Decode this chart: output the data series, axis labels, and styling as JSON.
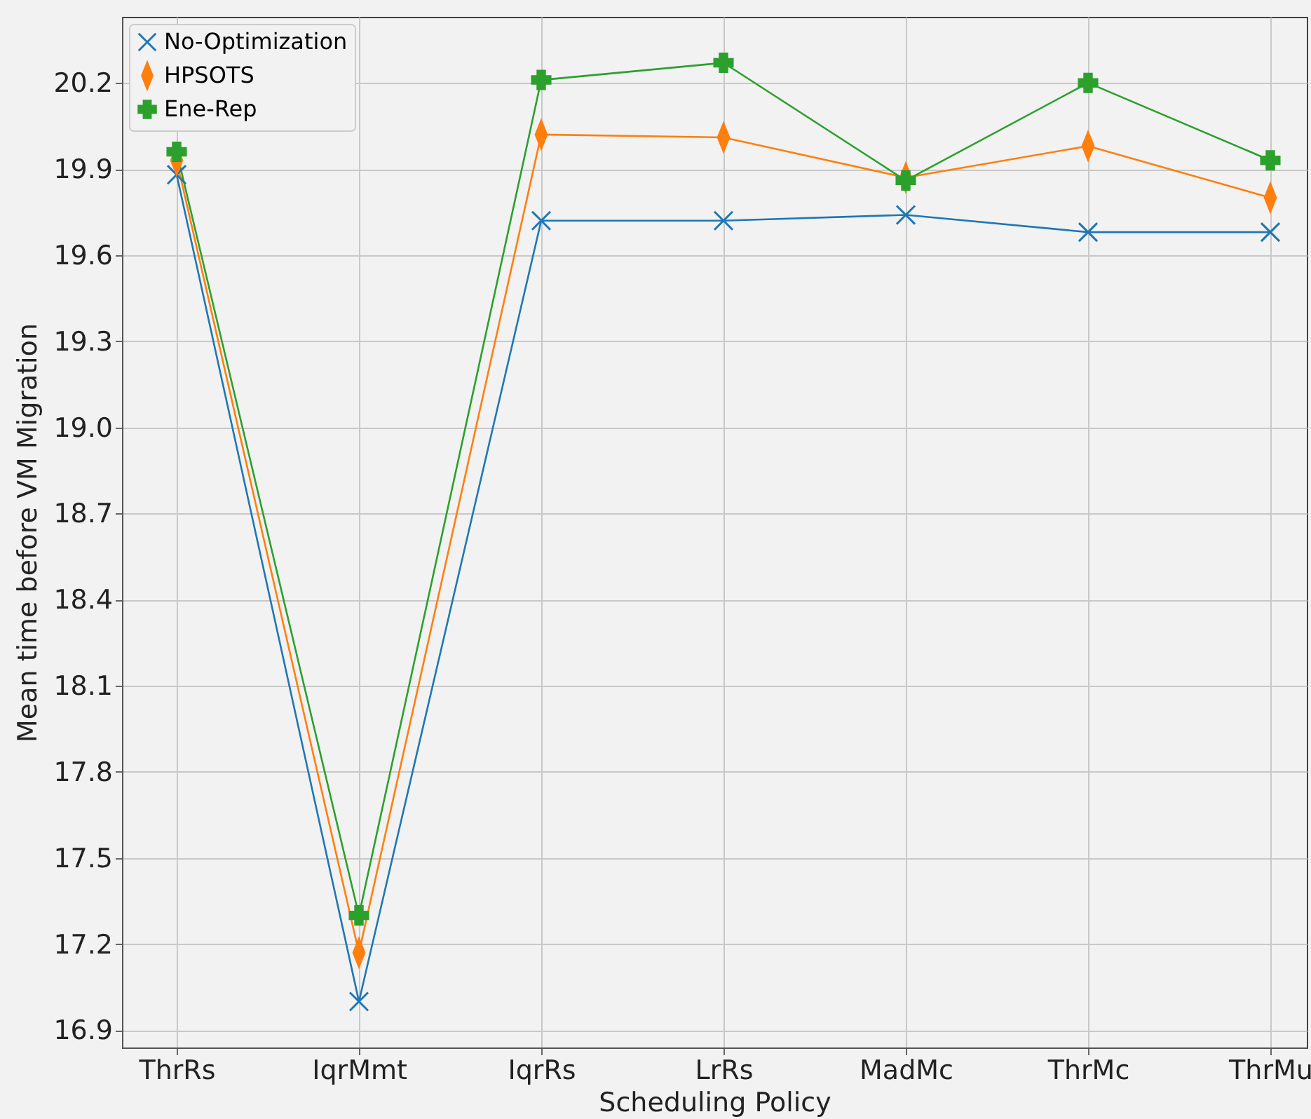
{
  "chart_data": {
    "type": "line",
    "xlabel": "Scheduling Policy",
    "ylabel": "Mean time before VM Migration",
    "categories": [
      "ThrRs",
      "IqrMmt",
      "IqrRs",
      "LrRs",
      "MadMc",
      "ThrMc",
      "ThrMu"
    ],
    "series": [
      {
        "name": "No-Optimization",
        "color": "#1f77b4",
        "marker": "x",
        "values": [
          19.88,
          17.0,
          19.72,
          19.72,
          19.74,
          19.68,
          19.68
        ]
      },
      {
        "name": "HPSOTS",
        "color": "#ff7f0e",
        "marker": "diamond",
        "values": [
          19.93,
          17.17,
          20.02,
          20.01,
          19.87,
          19.98,
          19.8
        ]
      },
      {
        "name": "Ene-Rep",
        "color": "#2ca02c",
        "marker": "cross",
        "values": [
          19.96,
          17.3,
          20.21,
          20.27,
          19.86,
          20.2,
          19.93
        ]
      }
    ],
    "ylim": [
      16.84,
      20.43
    ],
    "yticks": [
      16.9,
      17.2,
      17.5,
      17.8,
      {
        "value": 18.1,
        "label": "18.1"
      },
      18.4,
      18.7,
      {
        "value": 19,
        "label": "19.0"
      },
      19.3,
      19.6,
      19.9,
      20.2
    ],
    "grid": true,
    "legend": "top left"
  }
}
